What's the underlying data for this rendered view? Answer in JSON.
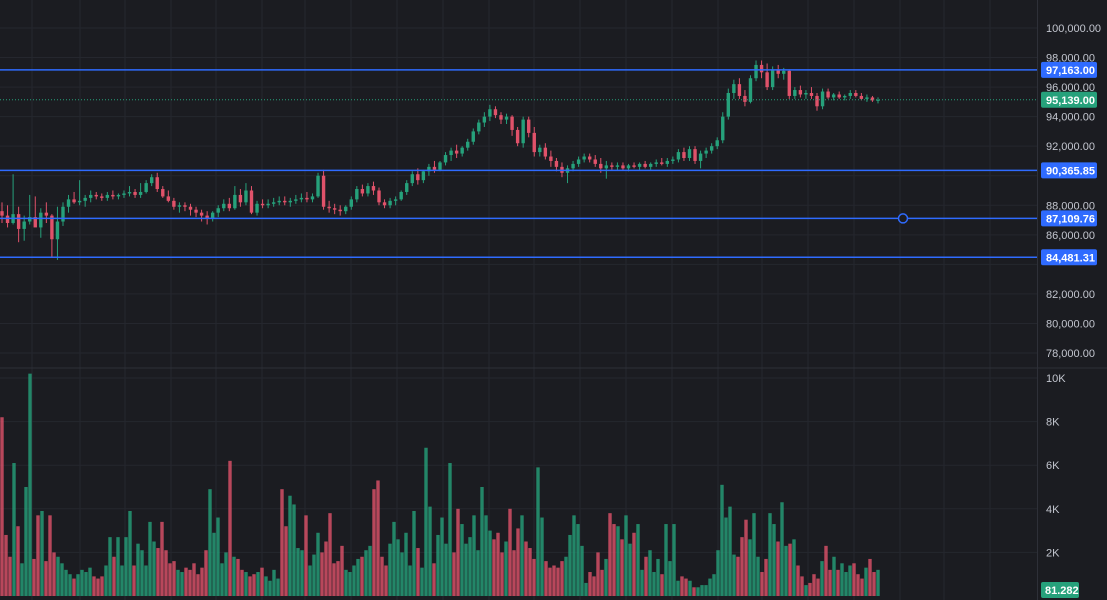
{
  "chart_data": [
    {
      "type": "candlestick",
      "title": "",
      "ylim": [
        76200,
        102000
      ],
      "grid": true,
      "colors": {
        "up": "#26a17b",
        "down": "#e0526a",
        "hline": "#2f6bff",
        "last_price": "#26a17b",
        "background": "#1b1c21"
      },
      "y_ticks": [
        "100,000.00",
        "98,000.00",
        "96,000.00",
        "94,000.00",
        "92,000.00",
        "88,000.00",
        "86,000.00",
        "82,000.00",
        "80,000.00",
        "78,000.00"
      ],
      "horizontal_lines": [
        {
          "value": 97163.0,
          "label": "97,163.00"
        },
        {
          "value": 90365.85,
          "label": "90,365.85"
        },
        {
          "value": 87109.76,
          "label": "87,109.76"
        },
        {
          "value": 84481.31,
          "label": "84,481.31"
        }
      ],
      "last_price": {
        "value": 95139.0,
        "label": "95,139.00"
      },
      "candles_ohlc": [
        [
          87600,
          88200,
          86800,
          87300
        ],
        [
          87300,
          88000,
          86500,
          86800
        ],
        [
          86800,
          90100,
          86700,
          87400
        ],
        [
          87400,
          87900,
          85500,
          86400
        ],
        [
          86400,
          87300,
          85600,
          86900
        ],
        [
          86900,
          88700,
          86700,
          87200
        ],
        [
          87200,
          88600,
          86600,
          86500
        ],
        [
          86500,
          87800,
          85800,
          87500
        ],
        [
          87500,
          88200,
          86800,
          87300
        ],
        [
          87300,
          87400,
          84500,
          85700
        ],
        [
          85700,
          87900,
          84300,
          86900
        ],
        [
          86900,
          88200,
          86600,
          87900
        ],
        [
          87900,
          88700,
          87500,
          88400
        ],
        [
          88400,
          88900,
          88100,
          88200
        ],
        [
          88200,
          89700,
          88000,
          88300
        ],
        [
          88300,
          88700,
          87900,
          88500
        ],
        [
          88500,
          89000,
          88200,
          88700
        ],
        [
          88700,
          88900,
          88400,
          88600
        ],
        [
          88600,
          88800,
          88300,
          88500
        ],
        [
          88500,
          88900,
          88300,
          88700
        ],
        [
          88700,
          89000,
          88400,
          88600
        ],
        [
          88600,
          88800,
          88400,
          88700
        ],
        [
          88700,
          89000,
          88500,
          88800
        ],
        [
          88800,
          89300,
          88600,
          88900
        ],
        [
          88900,
          89100,
          88500,
          88700
        ],
        [
          88700,
          89500,
          88500,
          88900
        ],
        [
          88900,
          89700,
          88800,
          89500
        ],
        [
          89500,
          90100,
          89300,
          89900
        ],
        [
          89900,
          90200,
          88900,
          89100
        ],
        [
          89100,
          89300,
          88500,
          88600
        ],
        [
          88600,
          89000,
          88200,
          88300
        ],
        [
          88300,
          88500,
          87700,
          87900
        ],
        [
          87900,
          88200,
          87500,
          88000
        ],
        [
          88000,
          88200,
          87600,
          87900
        ],
        [
          87900,
          88100,
          87300,
          87700
        ],
        [
          87700,
          87900,
          87200,
          87500
        ],
        [
          87500,
          87700,
          86900,
          87300
        ],
        [
          87300,
          87600,
          86700,
          87100
        ],
        [
          87100,
          87600,
          86900,
          87500
        ],
        [
          87500,
          88000,
          87200,
          87800
        ],
        [
          87800,
          88400,
          87600,
          88100
        ],
        [
          88100,
          88500,
          87600,
          87800
        ],
        [
          87800,
          89300,
          87700,
          88700
        ],
        [
          88700,
          89100,
          87900,
          88200
        ],
        [
          88200,
          89500,
          88000,
          89000
        ],
        [
          89000,
          89300,
          87400,
          87500
        ],
        [
          87500,
          88300,
          87300,
          88100
        ],
        [
          88100,
          88400,
          87800,
          88000
        ],
        [
          88000,
          88400,
          87800,
          88100
        ],
        [
          88100,
          88500,
          87900,
          88200
        ],
        [
          88200,
          88600,
          88000,
          88300
        ],
        [
          88300,
          88600,
          88000,
          88200
        ],
        [
          88200,
          88500,
          87900,
          88300
        ],
        [
          88300,
          88700,
          88100,
          88400
        ],
        [
          88400,
          88800,
          88200,
          88500
        ],
        [
          88500,
          88900,
          88200,
          88400
        ],
        [
          88400,
          88800,
          88200,
          88600
        ],
        [
          88600,
          90200,
          88500,
          90000
        ],
        [
          90000,
          90400,
          87700,
          87900
        ],
        [
          87900,
          88300,
          87500,
          87800
        ],
        [
          87800,
          88100,
          87400,
          87700
        ],
        [
          87700,
          88000,
          87300,
          87600
        ],
        [
          87600,
          88000,
          87400,
          87900
        ],
        [
          87900,
          88600,
          87700,
          88400
        ],
        [
          88400,
          89300,
          88200,
          89100
        ],
        [
          89100,
          89400,
          88600,
          88800
        ],
        [
          88800,
          89500,
          88600,
          89300
        ],
        [
          89300,
          89600,
          88700,
          89000
        ],
        [
          89000,
          89200,
          88000,
          88200
        ],
        [
          88200,
          88400,
          87800,
          88000
        ],
        [
          88000,
          88500,
          87800,
          88300
        ],
        [
          88300,
          88600,
          88000,
          88400
        ],
        [
          88400,
          89000,
          88300,
          88900
        ],
        [
          88900,
          89700,
          88700,
          89500
        ],
        [
          89500,
          90300,
          89300,
          90100
        ],
        [
          90100,
          90500,
          89400,
          89700
        ],
        [
          89700,
          90400,
          89500,
          90300
        ],
        [
          90300,
          90800,
          90000,
          90600
        ],
        [
          90600,
          91000,
          90200,
          90400
        ],
        [
          90400,
          91000,
          90300,
          90900
        ],
        [
          90900,
          91600,
          90700,
          91400
        ],
        [
          91400,
          91900,
          91000,
          91700
        ],
        [
          91700,
          92100,
          91200,
          91500
        ],
        [
          91500,
          92000,
          91300,
          91900
        ],
        [
          91900,
          92500,
          91700,
          92300
        ],
        [
          92300,
          93200,
          92100,
          93000
        ],
        [
          93000,
          93800,
          92800,
          93600
        ],
        [
          93600,
          94300,
          93300,
          94000
        ],
        [
          94000,
          94800,
          93700,
          94500
        ],
        [
          94500,
          94700,
          93900,
          94100
        ],
        [
          94100,
          94300,
          93500,
          93800
        ],
        [
          93800,
          94200,
          93500,
          94000
        ],
        [
          94000,
          94100,
          92700,
          93100
        ],
        [
          93100,
          93300,
          92000,
          92200
        ],
        [
          92200,
          94000,
          91900,
          93800
        ],
        [
          93800,
          94000,
          92600,
          92900
        ],
        [
          92900,
          93300,
          91300,
          91600
        ],
        [
          91600,
          92100,
          91300,
          91900
        ],
        [
          91900,
          92200,
          91100,
          91300
        ],
        [
          91300,
          91700,
          90600,
          91000
        ],
        [
          91000,
          91200,
          90300,
          90600
        ],
        [
          90600,
          90900,
          89900,
          90200
        ],
        [
          90200,
          90700,
          89500,
          90500
        ],
        [
          90500,
          91000,
          90300,
          90800
        ],
        [
          90800,
          91300,
          90600,
          91100
        ],
        [
          91100,
          91500,
          90900,
          91300
        ],
        [
          91300,
          91500,
          90900,
          91100
        ],
        [
          91100,
          91400,
          90600,
          90800
        ],
        [
          90800,
          91200,
          90200,
          90500
        ],
        [
          90500,
          91000,
          89800,
          90700
        ],
        [
          90700,
          90900,
          90400,
          90600
        ],
        [
          90600,
          90900,
          90400,
          90700
        ],
        [
          90700,
          90900,
          90400,
          90500
        ],
        [
          90500,
          90800,
          90300,
          90700
        ],
        [
          90700,
          90900,
          90500,
          90600
        ],
        [
          90600,
          90900,
          90400,
          90800
        ],
        [
          90800,
          91000,
          90500,
          90600
        ],
        [
          90600,
          90900,
          90400,
          90800
        ],
        [
          90800,
          91100,
          90600,
          90900
        ],
        [
          90900,
          91200,
          90700,
          90800
        ],
        [
          90800,
          91200,
          90600,
          91000
        ],
        [
          91000,
          91300,
          90800,
          91100
        ],
        [
          91100,
          91800,
          90900,
          91600
        ],
        [
          91600,
          91900,
          91000,
          91200
        ],
        [
          91200,
          92000,
          91000,
          91800
        ],
        [
          91800,
          92000,
          90800,
          91000
        ],
        [
          91000,
          91700,
          90500,
          91500
        ],
        [
          91500,
          91900,
          91200,
          91700
        ],
        [
          91700,
          92200,
          91500,
          92000
        ],
        [
          92000,
          92600,
          91800,
          92400
        ],
        [
          92400,
          94300,
          92200,
          94000
        ],
        [
          94000,
          95900,
          93800,
          95600
        ],
        [
          95600,
          96500,
          95200,
          96200
        ],
        [
          96200,
          96600,
          95200,
          95400
        ],
        [
          95400,
          95800,
          94700,
          95000
        ],
        [
          95000,
          96800,
          94900,
          96600
        ],
        [
          96600,
          97800,
          96400,
          97500
        ],
        [
          97500,
          97800,
          96600,
          97000
        ],
        [
          97000,
          97600,
          95800,
          96000
        ],
        [
          96000,
          97400,
          95800,
          97200
        ],
        [
          97200,
          97500,
          96600,
          96900
        ],
        [
          96900,
          97300,
          96500,
          97100
        ],
        [
          97100,
          97200,
          95200,
          95400
        ],
        [
          95400,
          96000,
          95200,
          95800
        ],
        [
          95800,
          96100,
          95300,
          95500
        ],
        [
          95500,
          95800,
          95200,
          95600
        ],
        [
          95600,
          96000,
          95200,
          95400
        ],
        [
          95400,
          95600,
          94400,
          94700
        ],
        [
          94700,
          95900,
          94500,
          95700
        ],
        [
          95700,
          95900,
          95200,
          95300
        ],
        [
          95300,
          95600,
          95100,
          95500
        ],
        [
          95500,
          95700,
          95200,
          95300
        ],
        [
          95300,
          95500,
          95100,
          95400
        ],
        [
          95400,
          95800,
          95200,
          95600
        ],
        [
          95600,
          95800,
          95300,
          95400
        ],
        [
          95400,
          95600,
          95100,
          95200
        ],
        [
          95200,
          95500,
          95000,
          95300
        ],
        [
          95300,
          95400,
          95000,
          95100
        ],
        [
          95100,
          95300,
          94900,
          95139
        ]
      ]
    },
    {
      "type": "bar",
      "title": "",
      "ylim": [
        0,
        10000
      ],
      "y_ticks": [
        "10K",
        "8K",
        "6K",
        "4K",
        "2K"
      ],
      "last_value_label": "81.282",
      "values": [
        8200,
        2800,
        1800,
        6100,
        3200,
        1500,
        5000,
        10200,
        1700,
        3700,
        3900,
        1600,
        3700,
        2000,
        1800,
        1500,
        1200,
        1000,
        800,
        1000,
        1200,
        1100,
        1300,
        900,
        800,
        900,
        1400,
        2700,
        1800,
        2700,
        1400,
        2700,
        3900,
        1400,
        2400,
        2100,
        1400,
        3400,
        2500,
        2200,
        3400,
        2100,
        1500,
        1600,
        1200,
        1100,
        1300,
        1200,
        1500,
        1000,
        1300,
        2100,
        4900,
        2900,
        3600,
        1500,
        2000,
        6200,
        1800,
        1700,
        1200,
        1100,
        900,
        1000,
        1100,
        1300,
        900,
        700,
        1200,
        800,
        4900,
        3200,
        4600,
        4200,
        2200,
        2100,
        3700,
        1400,
        1900,
        2900,
        2000,
        2500,
        3800,
        1500,
        1600,
        2300,
        1200,
        1100,
        1400,
        1700,
        1800,
        2100,
        2300,
        4900,
        5300,
        1800,
        1400,
        2400,
        3400,
        2600,
        2000,
        2900,
        1400,
        3900,
        2200,
        1300,
        6800,
        4100,
        1500,
        2800,
        3600,
        2400,
        6100,
        2000,
        4000,
        3300,
        2400,
        2700,
        3700,
        2100,
        5000,
        3700,
        3000,
        2600,
        2900,
        2000,
        2500,
        4000,
        2100,
        3100,
        3700,
        2500,
        2200,
        1700,
        5900,
        3600,
        1600,
        1300,
        1400,
        1300,
        1600,
        1800,
        2800,
        3700,
        3300,
        2300,
        600,
        1100,
        900,
        2000,
        1200,
        1700,
        3800,
        3300,
        3200,
        2600,
        3700,
        2400,
        2900,
        3300,
        1200,
        1800,
        2100,
        1100,
        1700,
        1000,
        3300,
        1600,
        3300,
        700,
        900,
        800,
        700,
        400,
        400,
        500,
        500,
        800,
        1000,
        2100,
        5100,
        3600,
        4100,
        1900,
        1800,
        2700,
        3500,
        2600,
        3800,
        1800,
        1100,
        1700,
        3800,
        3300,
        2500,
        4300,
        2300,
        2400,
        2600,
        1400,
        900,
        500,
        600,
        1000,
        800,
        1600,
        2300,
        1200,
        1800,
        1200,
        1500,
        1100,
        1400,
        1500,
        1000,
        800,
        1300,
        1700,
        1100,
        1200
      ]
    }
  ]
}
